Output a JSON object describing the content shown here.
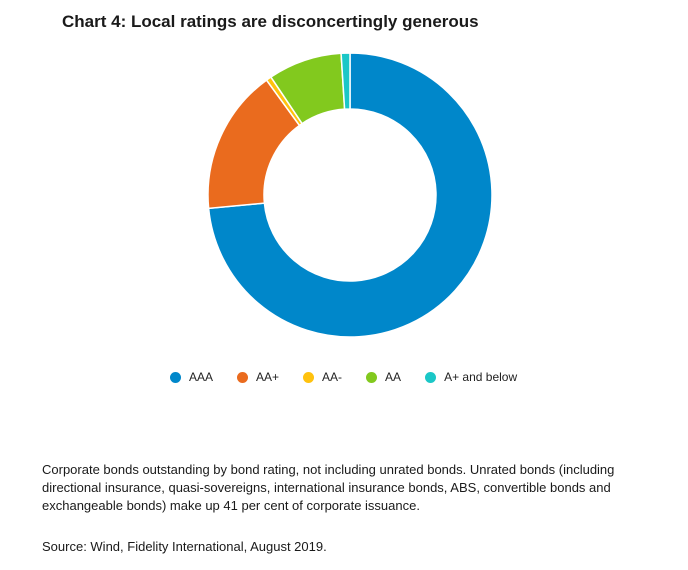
{
  "header": {
    "title": "Chart 4: Local ratings are disconcertingly generous"
  },
  "chart_data": {
    "type": "pie",
    "donut": true,
    "legend_position": "bottom",
    "categories": [
      "AAA",
      "AA+",
      "AA-",
      "AA",
      "A+ and below"
    ],
    "values": [
      73.5,
      16.5,
      0.6,
      8.4,
      1.0
    ],
    "colors": [
      "#0087CA",
      "#EA6B1E",
      "#FFC20E",
      "#82C91E",
      "#1BC7C7"
    ],
    "legend": [
      {
        "label": "AAA",
        "color": "#0087CA"
      },
      {
        "label": "AA+",
        "color": "#EA6B1E"
      },
      {
        "label": "AA-",
        "color": "#FFC20E"
      },
      {
        "label": "AA",
        "color": "#82C91E"
      },
      {
        "label": "A+ and below",
        "color": "#1BC7C7"
      }
    ]
  },
  "footer": {
    "note": "Corporate bonds outstanding by bond rating, not including unrated bonds. Unrated bonds (including directional insurance, quasi-sovereigns, international insurance bonds, ABS, convertible bonds and exchangeable bonds) make up 41 per cent of corporate issuance.",
    "source": "Source: Wind, Fidelity International, August 2019."
  }
}
